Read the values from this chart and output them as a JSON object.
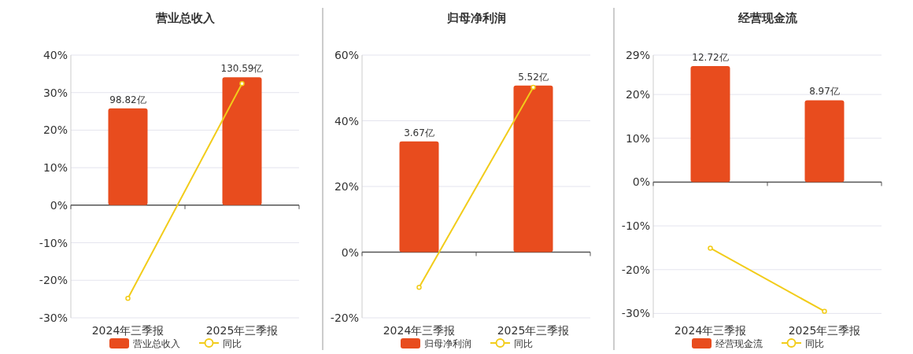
{
  "chart_data": [
    {
      "type": "bar",
      "title": "营业总收入",
      "categories": [
        "2024年三季报",
        "2025年三季报"
      ],
      "grid": "y",
      "legend": "bottom",
      "ylim": [
        -30,
        40
      ],
      "yticks": [
        {
          "value": -30,
          "label": "-30%"
        },
        {
          "value": -20,
          "label": "-20%"
        },
        {
          "value": -10,
          "label": "-10%"
        },
        {
          "value": 0,
          "label": "0%"
        },
        {
          "value": 10,
          "label": "10%"
        },
        {
          "value": 20,
          "label": "20%"
        },
        {
          "value": 30,
          "label": "30%"
        },
        {
          "value": 40,
          "label": "40%"
        }
      ],
      "y2lim": [
        -114.9,
        153.2
      ],
      "series": [
        {
          "name": "营业总收入",
          "axis": "y2",
          "color": "#e84c1e",
          "values": [
            98.82,
            130.59
          ],
          "value_labels": [
            "98.82亿",
            "130.59亿"
          ]
        },
        {
          "name": "同比",
          "type": "line",
          "marker": "circle",
          "color": "#f2cc1a",
          "values": [
            -24.8,
            32.4
          ]
        }
      ]
    },
    {
      "type": "bar",
      "title": "归母净利润",
      "categories": [
        "2024年三季报",
        "2025年三季报"
      ],
      "grid": "y",
      "legend": "bottom",
      "ylim": [
        -20,
        60
      ],
      "yticks": [
        {
          "value": -20,
          "label": "-20%"
        },
        {
          "value": 0,
          "label": "0%"
        },
        {
          "value": 20,
          "label": "20%"
        },
        {
          "value": 40,
          "label": "40%"
        },
        {
          "value": 60,
          "label": "60%"
        }
      ],
      "y2lim": [
        -2.18,
        6.53
      ],
      "series": [
        {
          "name": "归母净利润",
          "axis": "y2",
          "color": "#e84c1e",
          "values": [
            3.67,
            5.52
          ],
          "value_labels": [
            "3.67亿",
            "5.52亿"
          ]
        },
        {
          "name": "同比",
          "type": "line",
          "marker": "circle",
          "color": "#f2cc1a",
          "values": [
            -10.7,
            50.2
          ]
        }
      ]
    },
    {
      "type": "bar",
      "title": "经营现金流",
      "categories": [
        "2024年三季报",
        "2025年三季报"
      ],
      "grid": "y",
      "legend": "bottom",
      "ylim": [
        -31,
        29
      ],
      "yticks": [
        {
          "value": -30,
          "label": "-30%"
        },
        {
          "value": -20,
          "label": "-20%"
        },
        {
          "value": -10,
          "label": "-10%"
        },
        {
          "value": 0,
          "label": "0%"
        },
        {
          "value": 10,
          "label": "10%"
        },
        {
          "value": 20,
          "label": "20%"
        },
        {
          "value": 29,
          "label": "29%"
        }
      ],
      "y2lim": [
        -14.88,
        13.92
      ],
      "series": [
        {
          "name": "经营现金流",
          "axis": "y2",
          "color": "#e84c1e",
          "values": [
            12.72,
            8.97
          ],
          "value_labels": [
            "12.72亿",
            "8.97亿"
          ]
        },
        {
          "name": "同比",
          "type": "line",
          "marker": "circle",
          "color": "#f2cc1a",
          "values": [
            -15.1,
            -29.5
          ]
        }
      ]
    }
  ]
}
